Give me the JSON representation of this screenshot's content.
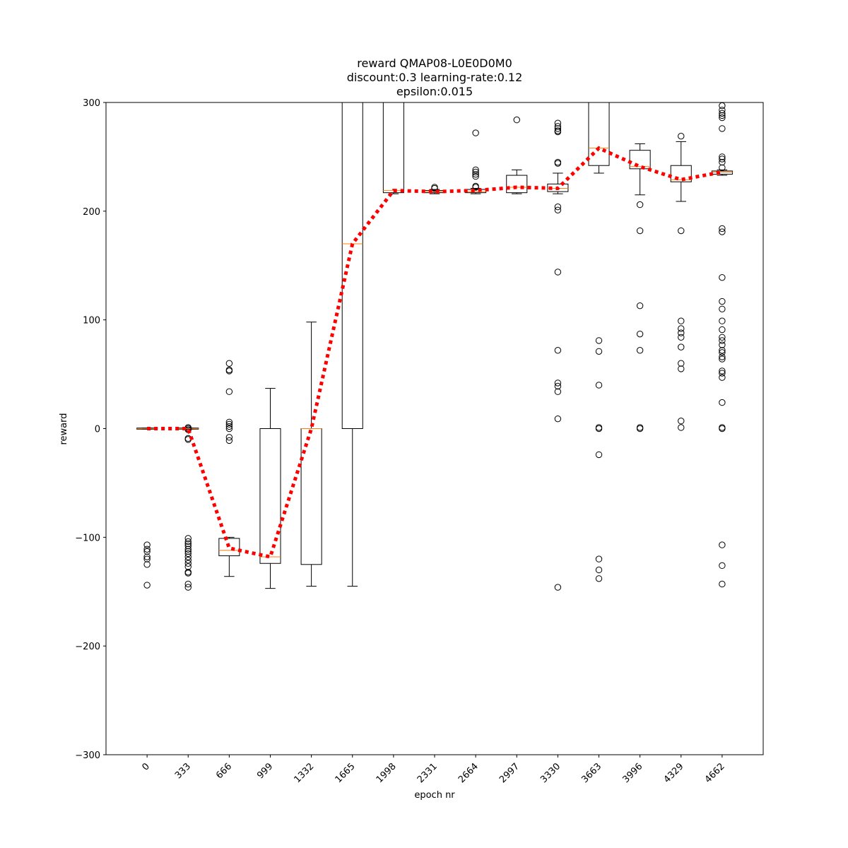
{
  "chart_data": {
    "type": "box",
    "title_lines": [
      "reward QMAP08-L0E0D0M0",
      "discount:0.3 learning-rate:0.12",
      "epsilon:0.015"
    ],
    "xlabel": "epoch nr",
    "ylabel": "reward",
    "ylim": [
      -300,
      300
    ],
    "yticks": [
      -300,
      -200,
      -100,
      0,
      100,
      200,
      300
    ],
    "categories": [
      "0",
      "333",
      "666",
      "999",
      "1332",
      "1665",
      "1998",
      "2331",
      "2664",
      "2997",
      "3330",
      "3663",
      "3996",
      "4329",
      "4662"
    ],
    "mean_line_color": "#ff0000",
    "median_color": "#ff7f0e",
    "boxes": [
      {
        "q1": -0.5,
        "median": 0,
        "q3": 0.5,
        "whislo": -0.5,
        "whishi": 0.5,
        "fliers": [
          -107,
          -111,
          -113,
          -118,
          -120,
          -125,
          -144
        ]
      },
      {
        "q1": -0.5,
        "median": 0,
        "q3": 0.5,
        "whislo": -0.5,
        "whishi": 0.5,
        "fliers": [
          1,
          0,
          -1,
          -9,
          -10,
          -101,
          -104,
          -106,
          -108,
          -111,
          -113,
          -115,
          -118,
          -121,
          -124,
          -127,
          -132,
          -133,
          -143,
          -146
        ]
      },
      {
        "q1": -117,
        "median": -112,
        "q3": -101,
        "whislo": -136,
        "whishi": -100,
        "fliers": [
          60,
          54,
          53,
          34,
          6,
          4,
          2,
          0,
          -8,
          -11
        ]
      },
      {
        "q1": -124,
        "median": -118,
        "q3": 0,
        "whislo": -147,
        "whishi": 37,
        "fliers": []
      },
      {
        "q1": -125,
        "median": 0,
        "q3": 0,
        "whislo": -145,
        "whishi": 98,
        "fliers": []
      },
      {
        "q1": 0,
        "median": 170,
        "q3": 320,
        "whislo": -145,
        "whishi": 320,
        "fliers": []
      },
      {
        "q1": 217,
        "median": 219,
        "q3": 320,
        "whislo": 216,
        "whishi": 320,
        "fliers": []
      },
      {
        "q1": 217,
        "median": 218,
        "q3": 219,
        "whislo": 216,
        "whishi": 220,
        "fliers": [
          222,
          221
        ]
      },
      {
        "q1": 217,
        "median": 218,
        "q3": 220,
        "whislo": 216,
        "whishi": 221,
        "fliers": [
          272,
          238,
          236,
          234,
          232,
          223,
          222
        ]
      },
      {
        "q1": 217,
        "median": 222,
        "q3": 233,
        "whislo": 216,
        "whishi": 238,
        "fliers": [
          284
        ]
      },
      {
        "q1": 218,
        "median": 221,
        "q3": 225,
        "whislo": 216,
        "whishi": 235,
        "fliers": [
          281,
          278,
          276,
          274,
          273,
          245,
          244,
          204,
          201,
          144,
          72,
          42,
          39,
          34,
          9,
          -146
        ]
      },
      {
        "q1": 242,
        "median": 258,
        "q3": 320,
        "whislo": 235,
        "whishi": 320,
        "fliers": [
          81,
          71,
          40,
          1,
          0,
          -24,
          -120,
          -130,
          -138
        ]
      },
      {
        "q1": 239,
        "median": 241,
        "q3": 256,
        "whislo": 215,
        "whishi": 262,
        "fliers": [
          206,
          182,
          113,
          87,
          72,
          1,
          0
        ]
      },
      {
        "q1": 227,
        "median": 229,
        "q3": 242,
        "whislo": 209,
        "whishi": 264,
        "fliers": [
          269,
          182,
          99,
          92,
          88,
          84,
          75,
          60,
          55,
          7,
          1
        ]
      },
      {
        "q1": 234,
        "median": 236,
        "q3": 237,
        "whislo": 233,
        "whishi": 238,
        "fliers": [
          297,
          293,
          290,
          288,
          286,
          276,
          250,
          248,
          245,
          240,
          184,
          181,
          139,
          117,
          110,
          99,
          91,
          84,
          81,
          77,
          72,
          70,
          66,
          64,
          53,
          51,
          47,
          24,
          1,
          0,
          -107,
          -126,
          -143
        ]
      }
    ],
    "means": [
      0,
      0,
      -110,
      -118,
      0,
      170,
      219,
      218,
      219,
      222,
      221,
      258,
      241,
      229,
      236
    ]
  }
}
